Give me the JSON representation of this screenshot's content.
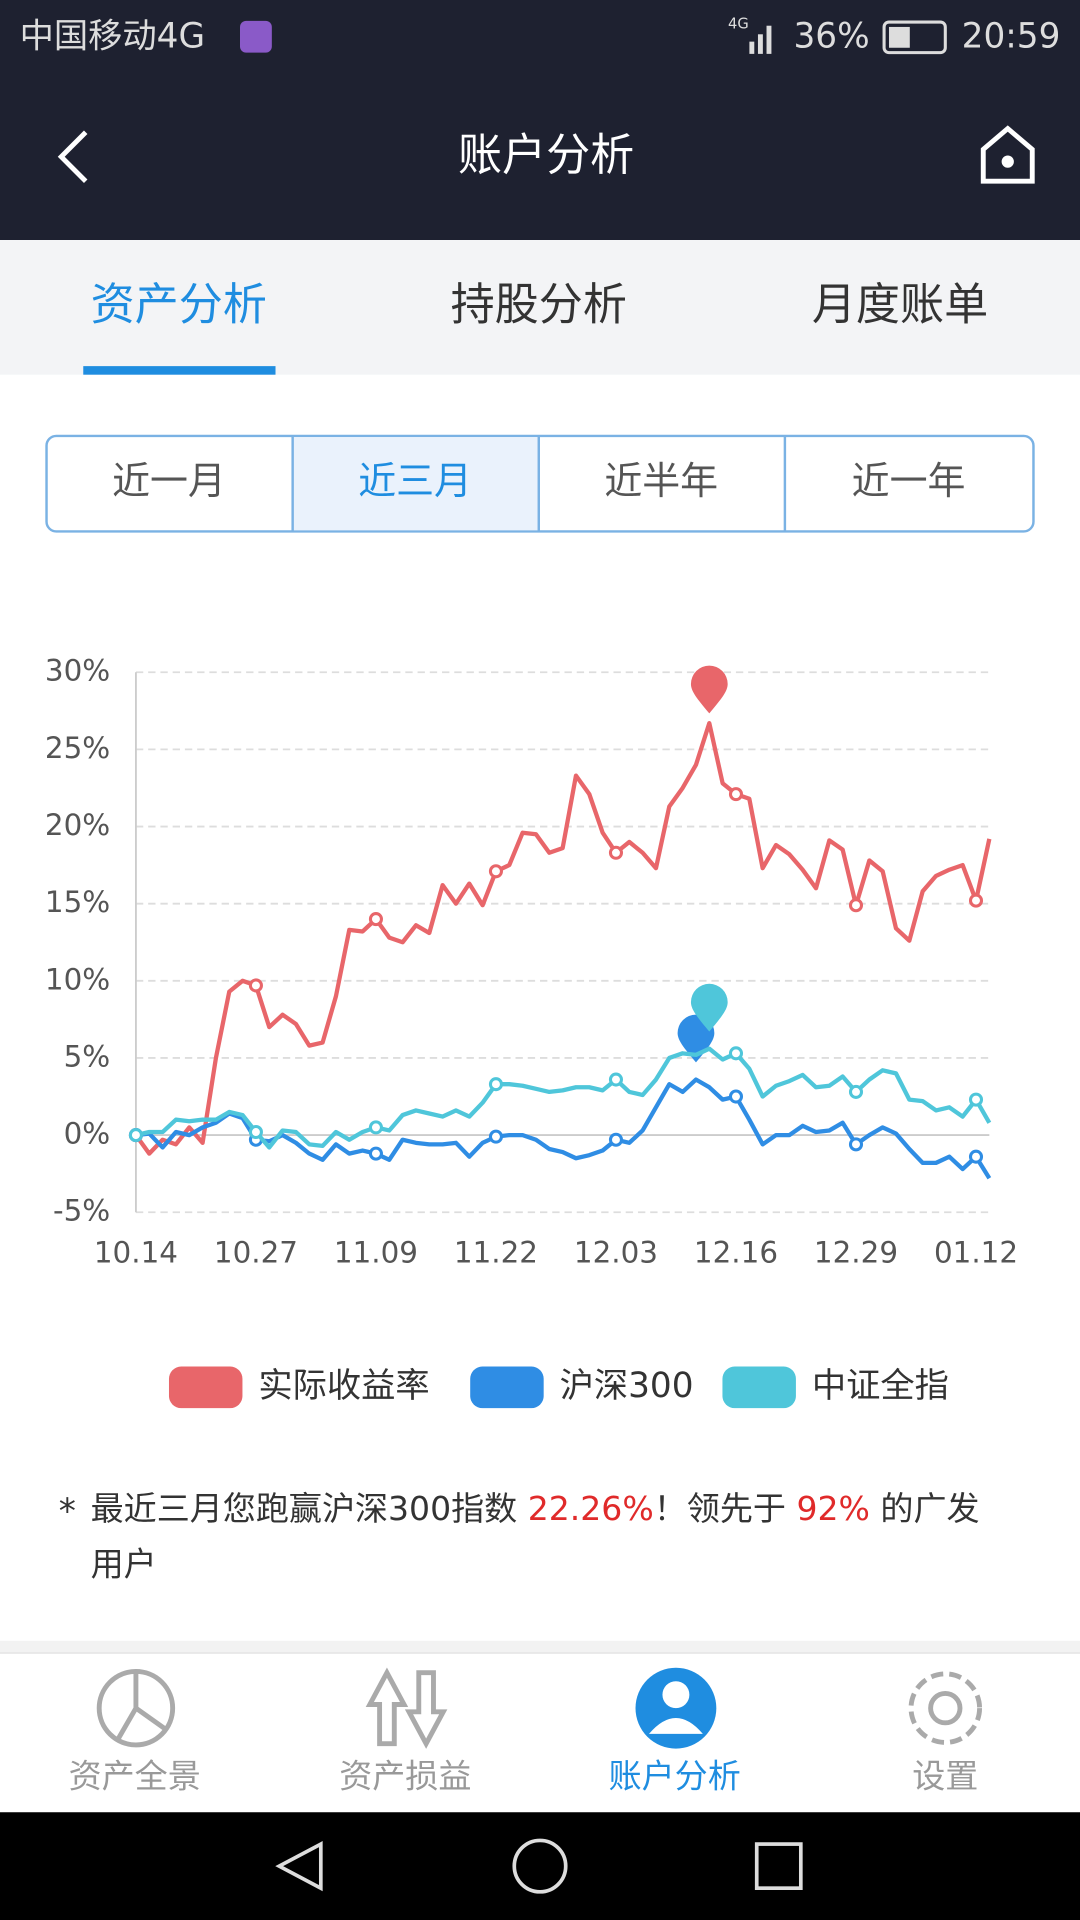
{
  "status_bar": {
    "carrier": "中国移动4G",
    "network": "4G",
    "battery": "36%",
    "time": "20:59"
  },
  "header": {
    "title": "账户分析"
  },
  "tabs": [
    "资产分析",
    "持股分析",
    "月度账单"
  ],
  "periods": [
    "近一月",
    "近三月",
    "近半年",
    "近一年"
  ],
  "chart_data": {
    "type": "line",
    "categories": [
      "10.14",
      null,
      null,
      null,
      null,
      null,
      null,
      null,
      null,
      "10.27",
      null,
      null,
      null,
      null,
      null,
      null,
      null,
      null,
      "11.09",
      null,
      null,
      null,
      null,
      null,
      null,
      null,
      null,
      "11.22",
      null,
      null,
      null,
      null,
      null,
      null,
      null,
      null,
      "12.03",
      null,
      null,
      null,
      null,
      null,
      null,
      null,
      null,
      "12.16",
      null,
      null,
      null,
      null,
      null,
      null,
      null,
      null,
      "12.29",
      null,
      null,
      null,
      null,
      null,
      null,
      null,
      null,
      "01.12",
      null
    ],
    "series": [
      {
        "name": "实际收益率",
        "color": "#e8666a",
        "values": [
          0,
          -1.2,
          -0.3,
          -0.6,
          0.5,
          -0.5,
          5,
          9.3,
          10,
          9.7,
          7,
          7.8,
          7.2,
          5.8,
          6,
          9,
          13.3,
          13.2,
          14,
          12.8,
          12.5,
          13.6,
          13.1,
          16.2,
          15,
          16.3,
          14.9,
          17.1,
          17.5,
          19.6,
          19.5,
          18.3,
          18.6,
          23.3,
          22.1,
          19.6,
          18.3,
          19,
          18.3,
          17.3,
          21.3,
          22.5,
          24,
          26.7,
          22.8,
          22.1,
          21.8,
          17.3,
          18.8,
          18.2,
          17.2,
          16,
          19.1,
          18.5,
          14.9,
          17.8,
          17.1,
          13.4,
          12.6,
          15.8,
          16.8,
          17.2,
          17.5,
          15.2,
          19.2
        ]
      },
      {
        "name": "沪深300",
        "color": "#2f8de4",
        "values": [
          0,
          0.1,
          -0.8,
          0.2,
          0,
          0.5,
          0.8,
          1.4,
          1.1,
          -0.3,
          -0.4,
          0,
          -0.5,
          -1.2,
          -1.6,
          -0.6,
          -1.2,
          -1,
          -1.2,
          -1.6,
          -0.3,
          -0.5,
          -0.6,
          -0.6,
          -0.5,
          -1.4,
          -0.5,
          -0.1,
          0,
          0,
          -0.3,
          -0.9,
          -1.1,
          -1.5,
          -1.3,
          -1,
          -0.3,
          -0.5,
          0.3,
          1.8,
          3.3,
          2.8,
          3.6,
          3.1,
          2.3,
          2.5,
          1,
          -0.6,
          0,
          0,
          0.6,
          0.2,
          0.3,
          0.8,
          -0.6,
          0,
          0.5,
          0.1,
          -0.9,
          -1.8,
          -1.8,
          -1.4,
          -2.2,
          -1.4,
          -2.8
        ]
      },
      {
        "name": "中证全指",
        "color": "#4fc6da",
        "values": [
          0,
          0.2,
          0.2,
          1,
          0.9,
          1,
          1,
          1.5,
          1.3,
          0.2,
          -0.8,
          0.3,
          0.2,
          -0.6,
          -0.7,
          0.2,
          -0.3,
          0.2,
          0.5,
          0.3,
          1.3,
          1.6,
          1.4,
          1.2,
          1.6,
          1.2,
          2.1,
          3.3,
          3.3,
          3.2,
          3,
          2.8,
          2.9,
          3.1,
          3.1,
          2.9,
          3.6,
          2.8,
          2.6,
          3.6,
          5,
          5.3,
          5.2,
          5.6,
          4.9,
          5.3,
          4.3,
          2.5,
          3.2,
          3.5,
          3.9,
          3.1,
          3.2,
          3.8,
          2.8,
          3.6,
          4.2,
          4,
          2.3,
          2.2,
          1.6,
          1.8,
          1.2,
          2.3,
          0.8
        ]
      }
    ],
    "ylim": [
      -5,
      30
    ],
    "yticks": [
      {
        "value": -5,
        "label": "-5%"
      },
      {
        "value": 0,
        "label": "0%"
      },
      {
        "value": 5,
        "label": "5%"
      },
      {
        "value": 10,
        "label": "10%"
      },
      {
        "value": 15,
        "label": "15%"
      },
      {
        "value": 20,
        "label": "20%"
      },
      {
        "value": 25,
        "label": "25%"
      },
      {
        "value": 30,
        "label": "30%"
      }
    ],
    "grid": true
  },
  "note": {
    "star": "*",
    "parts": [
      "最近三月您跑赢沪深300指数 ",
      "22.26%",
      "！领先于 ",
      "92%",
      " 的广发"
    ],
    "line2": "用户"
  },
  "bottom_nav": [
    "资产全景",
    "资产损益",
    "账户分析",
    "设置"
  ]
}
